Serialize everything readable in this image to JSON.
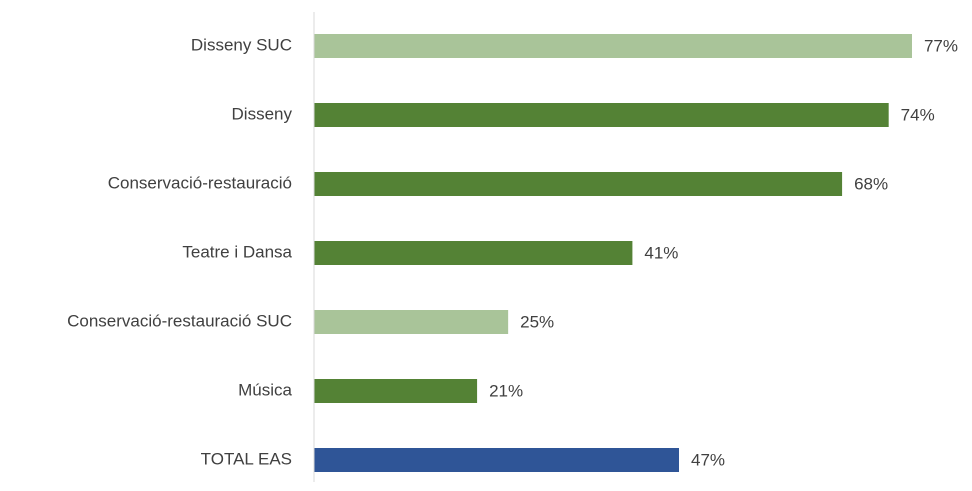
{
  "chart_data": {
    "type": "bar",
    "orientation": "horizontal",
    "categories": [
      "Disseny SUC",
      "Disseny",
      "Conservació-restauració",
      "Teatre i Dansa",
      "Conservació-restauració SUC",
      "Música",
      "TOTAL EAS"
    ],
    "values": [
      77,
      74,
      68,
      41,
      25,
      21,
      47
    ],
    "value_labels": [
      "77%",
      "74%",
      "68%",
      "41%",
      "25%",
      "21%",
      "47%"
    ],
    "colors": [
      "#a9c499",
      "#548235",
      "#548235",
      "#548235",
      "#a9c499",
      "#548235",
      "#2f5597"
    ],
    "xlim": [
      0,
      100
    ]
  }
}
